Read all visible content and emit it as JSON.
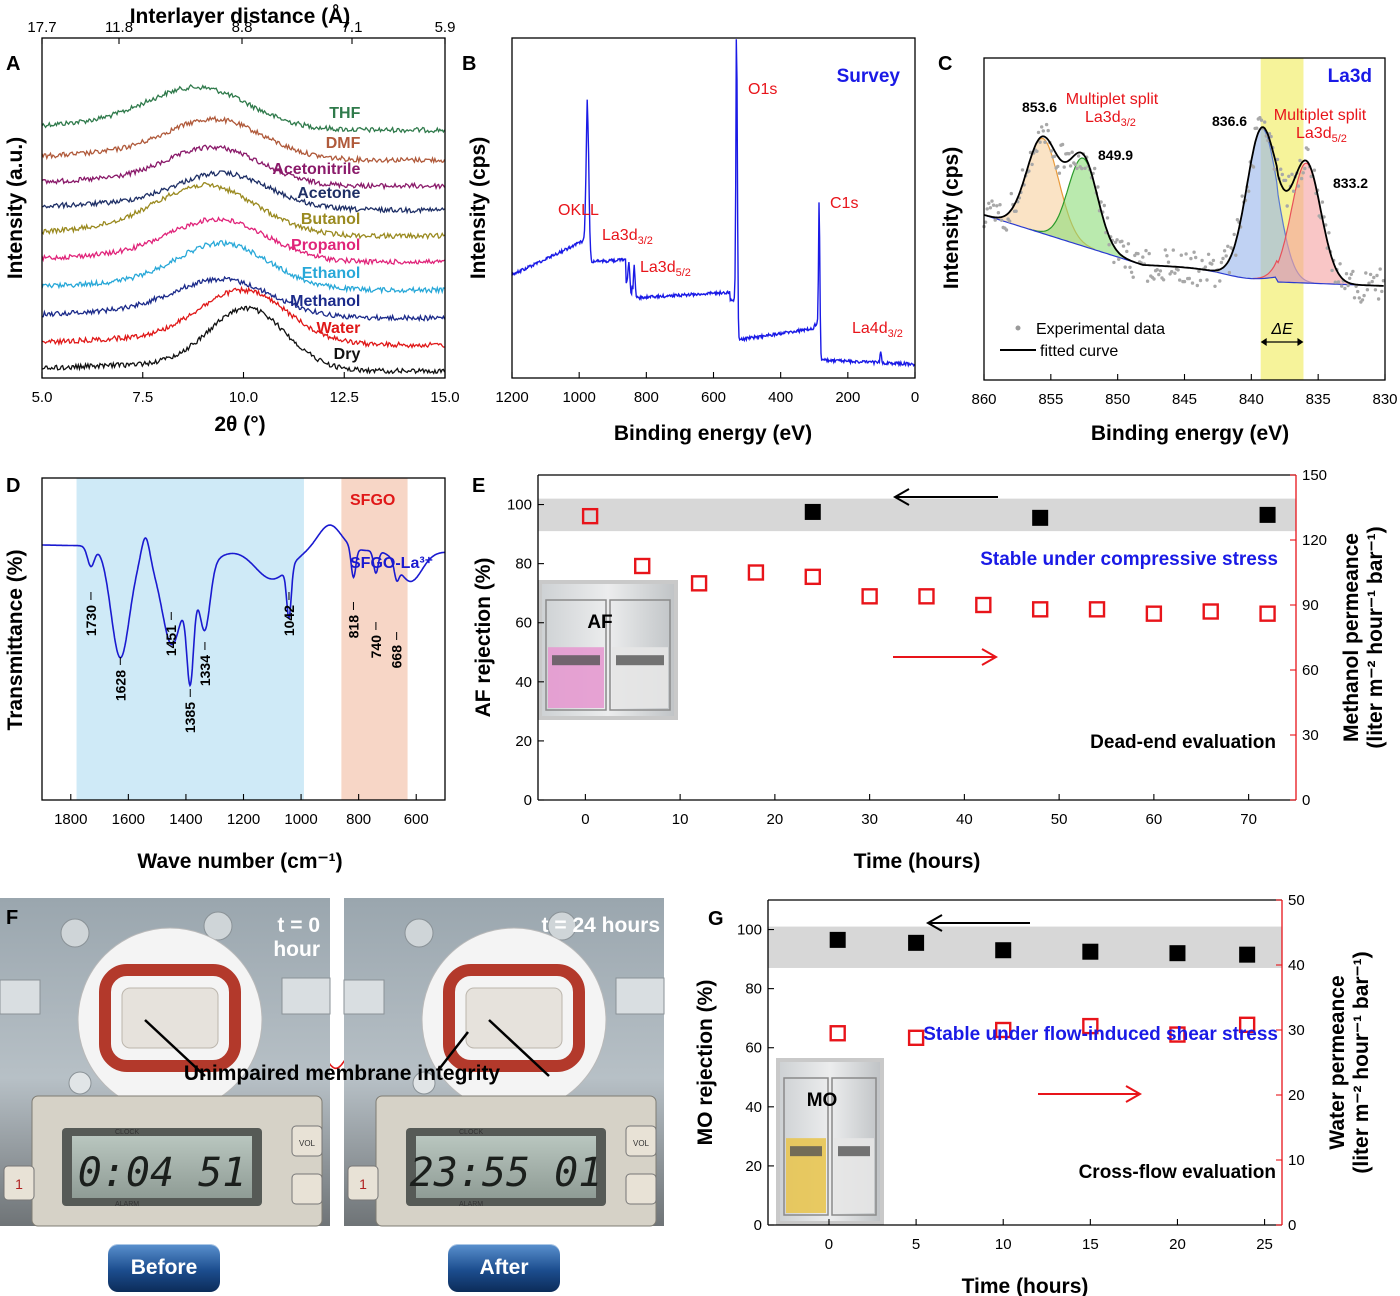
{
  "colors": {
    "blue": "#1a1ae6",
    "red": "#e8141a",
    "black": "#000000",
    "thf": "#2f7a4b",
    "dmf": "#b05a3b",
    "acetonitrile": "#8a1a6a",
    "acetone": "#1e2f66",
    "butanol": "#9a8a20",
    "propanol": "#e0247a",
    "ethanol": "#28a8d8",
    "methanol": "#1b2a8a",
    "water": "#e01818",
    "dry": "#111111"
  },
  "chart_data": [
    {
      "panel": "A",
      "type": "line",
      "xlabel": "2θ (°)",
      "ylabel": "Intensity (a.u.)",
      "top_axis_label": "Interlayer distance (Å)",
      "top_ticks": [
        "17.7",
        "11.8",
        "8.8",
        "7.1",
        "5.9"
      ],
      "xlim": [
        5.0,
        15.0
      ],
      "x_ticks": [
        "5.0",
        "7.5",
        "10.0",
        "12.5",
        "15.0"
      ],
      "series": [
        {
          "name": "THF",
          "peak": 8.9,
          "color_key": "thf"
        },
        {
          "name": "DMF",
          "peak": 9.3,
          "color_key": "dmf"
        },
        {
          "name": "Acetonitrile",
          "peak": 9.3,
          "color_key": "acetonitrile"
        },
        {
          "name": "Acetone",
          "peak": 9.5,
          "color_key": "acetone"
        },
        {
          "name": "Butanol",
          "peak": 9.1,
          "color_key": "butanol"
        },
        {
          "name": "Propanol",
          "peak": 9.4,
          "color_key": "propanol"
        },
        {
          "name": "Ethanol",
          "peak": 9.5,
          "color_key": "ethanol"
        },
        {
          "name": "Methanol",
          "peak": 9.5,
          "color_key": "methanol"
        },
        {
          "name": "Water",
          "peak": 10.0,
          "color_key": "water"
        },
        {
          "name": "Dry",
          "peak": 10.1,
          "color_key": "dry"
        }
      ]
    },
    {
      "panel": "B",
      "type": "line",
      "title": "Survey",
      "xlabel": "Binding energy (eV)",
      "ylabel": "Intensity (cps)",
      "xlim": [
        1200,
        0
      ],
      "x_ticks": [
        "1200",
        "1000",
        "800",
        "600",
        "400",
        "200",
        "0"
      ],
      "peaks": [
        {
          "label": "OKLL",
          "x": 975
        },
        {
          "label": "La3d",
          "sub": "3/2",
          "x": 852
        },
        {
          "label": "La3d",
          "sub": "5/2",
          "x": 836
        },
        {
          "label": "O1s",
          "x": 531
        },
        {
          "label": "C1s",
          "x": 285
        },
        {
          "label": "La4d",
          "sub": "3/2",
          "x": 102
        }
      ]
    },
    {
      "panel": "C",
      "type": "line",
      "title": "La3d",
      "xlabel": "Binding energy (eV)",
      "ylabel": "Intensity (cps)",
      "xlim": [
        860,
        830
      ],
      "x_ticks": [
        "860",
        "855",
        "850",
        "845",
        "840",
        "835",
        "830"
      ],
      "peak_labels": [
        "853.6",
        "849.9",
        "836.6",
        "833.2"
      ],
      "annotations": [
        "Multiplet split",
        "La3d",
        "3/2",
        "Multiplet split",
        "La3d",
        "5/2",
        "ΔE"
      ],
      "legend": [
        "Experimental data",
        "fitted curve"
      ],
      "highlight_range": [
        836.1,
        839.3
      ]
    },
    {
      "panel": "D",
      "type": "line",
      "xlabel": "Wave number (cm⁻¹)",
      "ylabel": "Transmittance (%)",
      "xlim": [
        1900,
        500
      ],
      "x_ticks": [
        "1800",
        "1600",
        "1400",
        "1200",
        "1000",
        "800",
        "600"
      ],
      "series": [
        {
          "name": "SFGO"
        },
        {
          "name": "SFGO-La³⁺"
        }
      ],
      "peak_labels": [
        "1730",
        "1628",
        "1451",
        "1385",
        "1334",
        "1042",
        "818",
        "740",
        "668"
      ]
    },
    {
      "panel": "E",
      "type": "scatter",
      "xlabel": "Time (hours)",
      "ylabel": "AF rejection (%)",
      "y2label": "Methanol permeance",
      "y2label_units": "(liter m⁻² hour⁻¹ bar⁻¹)",
      "xlim": [
        -5,
        75
      ],
      "ylim": [
        0,
        110
      ],
      "y2lim": [
        0,
        150
      ],
      "x_ticks": [
        "0",
        "10",
        "20",
        "30",
        "40",
        "50",
        "60",
        "70"
      ],
      "y_ticks": [
        "0",
        "20",
        "40",
        "60",
        "80",
        "100"
      ],
      "y2_ticks": [
        "0",
        "30",
        "60",
        "90",
        "120",
        "150"
      ],
      "rejection": {
        "x": [
          24,
          48,
          72
        ],
        "y": [
          97.5,
          95.5,
          96.5
        ]
      },
      "permeance": {
        "x": [
          0.5,
          6,
          12,
          18,
          24,
          30,
          36,
          42,
          48,
          54,
          60,
          66,
          72
        ],
        "y": [
          131,
          108,
          100,
          105,
          103,
          94,
          94,
          90,
          88,
          88,
          86,
          87,
          86
        ]
      },
      "stable_text": "Stable under compressive stress",
      "method_text": "Dead-end evaluation",
      "inset_label": "AF"
    },
    {
      "panel": "G",
      "type": "scatter",
      "xlabel": "Time (hours)",
      "ylabel": "MO rejection (%)",
      "y2label": "Water permeance",
      "y2label_units": "(liter m⁻² hour⁻¹ bar⁻¹)",
      "xlim": [
        -3.5,
        26
      ],
      "ylim": [
        0,
        110
      ],
      "y2lim": [
        0,
        50
      ],
      "x_ticks": [
        "0",
        "5",
        "10",
        "15",
        "20",
        "25"
      ],
      "y_ticks": [
        "0",
        "20",
        "40",
        "60",
        "80",
        "100"
      ],
      "y2_ticks": [
        "0",
        "10",
        "20",
        "30",
        "40",
        "50"
      ],
      "rejection": {
        "x": [
          0.5,
          5,
          10,
          15,
          20,
          24
        ],
        "y": [
          96.5,
          95.5,
          93,
          92.5,
          92,
          91.5
        ]
      },
      "permeance": {
        "x": [
          0.5,
          5,
          10,
          15,
          20,
          24
        ],
        "y": [
          29.5,
          28.8,
          30,
          30.6,
          29.3,
          30.8
        ]
      },
      "stable_text": "Stable under flow-induced shear stress",
      "method_text": "Cross-flow evaluation",
      "inset_label": "MO"
    }
  ],
  "photos": {
    "left_label": "t = 0 hour",
    "right_label": "t = 24 hours",
    "caption": "Unimpaired membrane integrity",
    "left_display": "0:04 51",
    "right_display": "23:55 01",
    "before_button": "Before",
    "after_button": "After",
    "display_words": [
      "CLOCK",
      "ALARM",
      "VOL"
    ],
    "keypad_digit": "1"
  },
  "panel_letters": [
    "A",
    "B",
    "C",
    "D",
    "E",
    "F",
    "G"
  ]
}
